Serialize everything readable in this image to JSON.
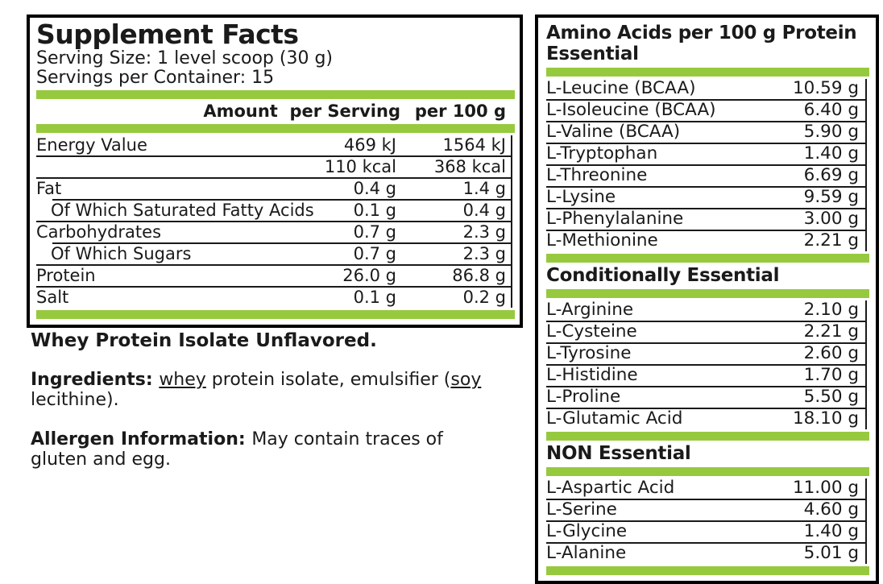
{
  "colors": {
    "accent_green": "#97C93F",
    "text": "#1A1A1A",
    "border": "#000000"
  },
  "supplement_facts": {
    "title": "Supplement Facts",
    "serving_size": "Serving Size: 1 level scoop (30 g)",
    "servings_per_container": "Servings per Container: 15",
    "column_headers": {
      "amount_per_serving": "Amount  per Serving",
      "per_100g": "per 100 g"
    },
    "rows": [
      {
        "label": "Energy Value",
        "per_serving": "469 kJ",
        "per_100g": "1564 kJ",
        "indent": false
      },
      {
        "label": "",
        "per_serving": "110 kcal",
        "per_100g": "368 kcal",
        "indent": false
      },
      {
        "label": "Fat",
        "per_serving": "0.4 g",
        "per_100g": "1.4 g",
        "indent": false
      },
      {
        "label": "Of Which Saturated Fatty Acids",
        "per_serving": "0.1 g",
        "per_100g": "0.4 g",
        "indent": true
      },
      {
        "label": "Carbohydrates",
        "per_serving": "0.7 g",
        "per_100g": "2.3 g",
        "indent": false
      },
      {
        "label": "Of Which Sugars",
        "per_serving": "0.7 g",
        "per_100g": "2.3 g",
        "indent": true
      },
      {
        "label": "Protein",
        "per_serving": "26.0 g",
        "per_100g": "86.8 g",
        "indent": false
      },
      {
        "label": "Salt",
        "per_serving": "0.1 g",
        "per_100g": "0.2 g",
        "indent": false
      }
    ]
  },
  "description": {
    "product_name": "Whey Protein Isolate Unflavored.",
    "ingredients": {
      "label": "Ingredients: ",
      "segments": [
        {
          "text": "whey",
          "underline": true,
          "break_after": false
        },
        {
          "text": " protein isolate, emulsifier (",
          "underline": false,
          "break_after": false
        },
        {
          "text": "soy",
          "underline": true,
          "break_after": true
        },
        {
          "text": "lecithine).",
          "underline": false,
          "break_after": false
        }
      ]
    },
    "allergen": {
      "label": "Allergen Information: ",
      "segments": [
        {
          "text": "May contain traces of",
          "underline": false,
          "break_after": true
        },
        {
          "text": "gluten and egg.",
          "underline": false,
          "break_after": false
        }
      ]
    }
  },
  "amino_acids": {
    "sections": [
      {
        "title_lines": [
          "Amino Acids per 100 g Protein",
          "Essential"
        ],
        "rows": [
          {
            "label": "L-Leucine (BCAA)",
            "value": "10.59 g"
          },
          {
            "label": "L-Isoleucine (BCAA)",
            "value": "6.40 g"
          },
          {
            "label": "L-Valine (BCAA)",
            "value": "5.90 g"
          },
          {
            "label": "L-Tryptophan",
            "value": "1.40 g"
          },
          {
            "label": "L-Threonine",
            "value": "6.69 g"
          },
          {
            "label": "L-Lysine",
            "value": "9.59 g"
          },
          {
            "label": "L-Phenylalanine",
            "value": "3.00 g"
          },
          {
            "label": "L-Methionine",
            "value": "2.21 g"
          }
        ]
      },
      {
        "title_lines": [
          "Conditionally Essential"
        ],
        "rows": [
          {
            "label": "L-Arginine",
            "value": "2.10 g"
          },
          {
            "label": "L-Cysteine",
            "value": "2.21 g"
          },
          {
            "label": "L-Tyrosine",
            "value": "2.60 g"
          },
          {
            "label": "L-Histidine",
            "value": "1.70 g"
          },
          {
            "label": "L-Proline",
            "value": "5.50 g"
          },
          {
            "label": "L-Glutamic Acid",
            "value": "18.10 g"
          }
        ]
      },
      {
        "title_lines": [
          "NON Essential"
        ],
        "rows": [
          {
            "label": "L-Aspartic Acid",
            "value": "11.00 g"
          },
          {
            "label": "L-Serine",
            "value": "4.60 g"
          },
          {
            "label": "L-Glycine",
            "value": "1.40 g"
          },
          {
            "label": "L-Alanine",
            "value": "5.01 g"
          }
        ]
      }
    ]
  }
}
